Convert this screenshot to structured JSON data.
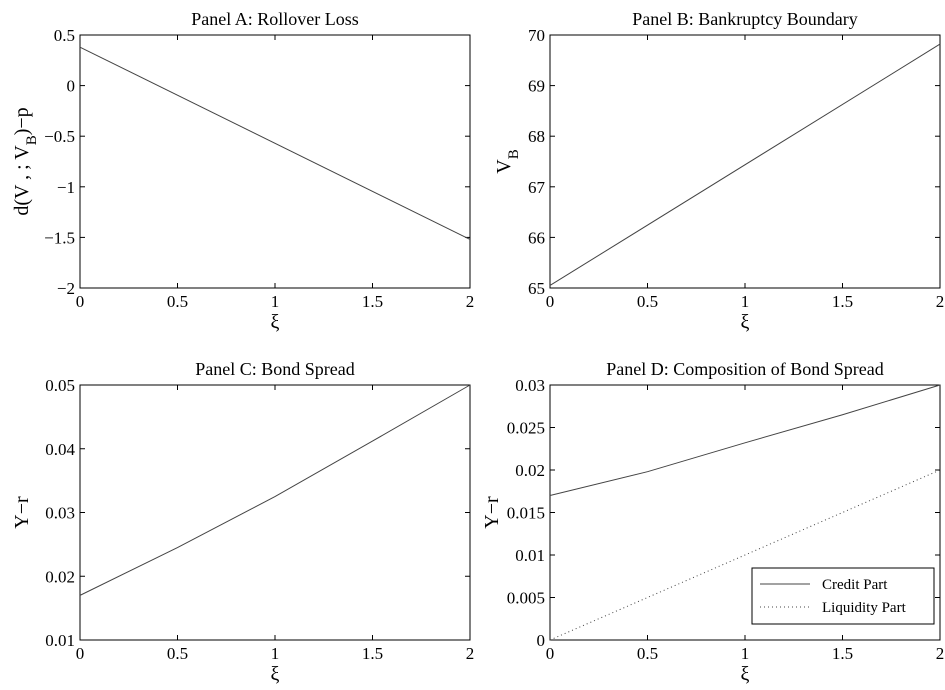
{
  "chart_data": [
    {
      "type": "line",
      "title": "Panel A: Rollover Loss",
      "xlabel": "ξ",
      "ylabel": "d(V , ; V )−p",
      "xlim": [
        0,
        2
      ],
      "ylim": [
        -2,
        0.5
      ],
      "xticks": [
        0,
        0.5,
        1,
        1.5,
        2
      ],
      "xtick_labels": [
        "0",
        "0.5",
        "1",
        "1.5",
        "2"
      ],
      "yticks": [
        -2,
        -1.5,
        -1,
        -0.5,
        0,
        0.5
      ],
      "ytick_labels": [
        "−2",
        "−1.5",
        "−1",
        "−0.5",
        "0",
        "0.5"
      ],
      "series": [
        {
          "x": [
            0,
            2
          ],
          "y": [
            0.38,
            -1.52
          ],
          "style": "solid",
          "color": "#444444"
        }
      ]
    },
    {
      "type": "line",
      "title": "Panel B: Bankruptcy Boundary",
      "xlabel": "ξ",
      "ylabel": "V",
      "xlim": [
        0,
        2
      ],
      "ylim": [
        65,
        70
      ],
      "xticks": [
        0,
        0.5,
        1,
        1.5,
        2
      ],
      "xtick_labels": [
        "0",
        "0.5",
        "1",
        "1.5",
        "2"
      ],
      "yticks": [
        65,
        66,
        67,
        68,
        69,
        70
      ],
      "ytick_labels": [
        "65",
        "66",
        "67",
        "68",
        "69",
        "70"
      ],
      "series": [
        {
          "x": [
            0,
            2
          ],
          "y": [
            65.05,
            69.82
          ],
          "style": "solid",
          "color": "#444444"
        }
      ]
    },
    {
      "type": "line",
      "title": "Panel C: Bond Spread",
      "xlabel": "ξ",
      "ylabel": "Y−r",
      "xlim": [
        0,
        2
      ],
      "ylim": [
        0.01,
        0.05
      ],
      "xticks": [
        0,
        0.5,
        1,
        1.5,
        2
      ],
      "xtick_labels": [
        "0",
        "0.5",
        "1",
        "1.5",
        "2"
      ],
      "yticks": [
        0.01,
        0.02,
        0.03,
        0.04,
        0.05
      ],
      "ytick_labels": [
        "0.01",
        "0.02",
        "0.03",
        "0.04",
        "0.05"
      ],
      "series": [
        {
          "x": [
            0,
            0.5,
            1,
            1.5,
            2
          ],
          "y": [
            0.017,
            0.0245,
            0.0325,
            0.0412,
            0.05
          ],
          "style": "solid",
          "color": "#444444"
        }
      ]
    },
    {
      "type": "line",
      "title": "Panel D: Composition of Bond Spread",
      "xlabel": "ξ",
      "ylabel": "Y−r",
      "xlim": [
        0,
        2
      ],
      "ylim": [
        0,
        0.03
      ],
      "xticks": [
        0,
        0.5,
        1,
        1.5,
        2
      ],
      "xtick_labels": [
        "0",
        "0.5",
        "1",
        "1.5",
        "2"
      ],
      "yticks": [
        0,
        0.005,
        0.01,
        0.015,
        0.02,
        0.025,
        0.03
      ],
      "ytick_labels": [
        "0",
        "0.005",
        "0.01",
        "0.015",
        "0.02",
        "0.025",
        "0.03"
      ],
      "legend": {
        "placement": "bottom-right"
      },
      "series": [
        {
          "name": "Credit Part",
          "x": [
            0,
            0.5,
            1,
            1.5,
            2
          ],
          "y": [
            0.017,
            0.0198,
            0.0232,
            0.0265,
            0.03
          ],
          "style": "solid",
          "color": "#444444"
        },
        {
          "name": "Liquidity Part",
          "x": [
            0,
            2
          ],
          "y": [
            0,
            0.02
          ],
          "style": "dotted",
          "color": "#444444"
        }
      ]
    }
  ]
}
